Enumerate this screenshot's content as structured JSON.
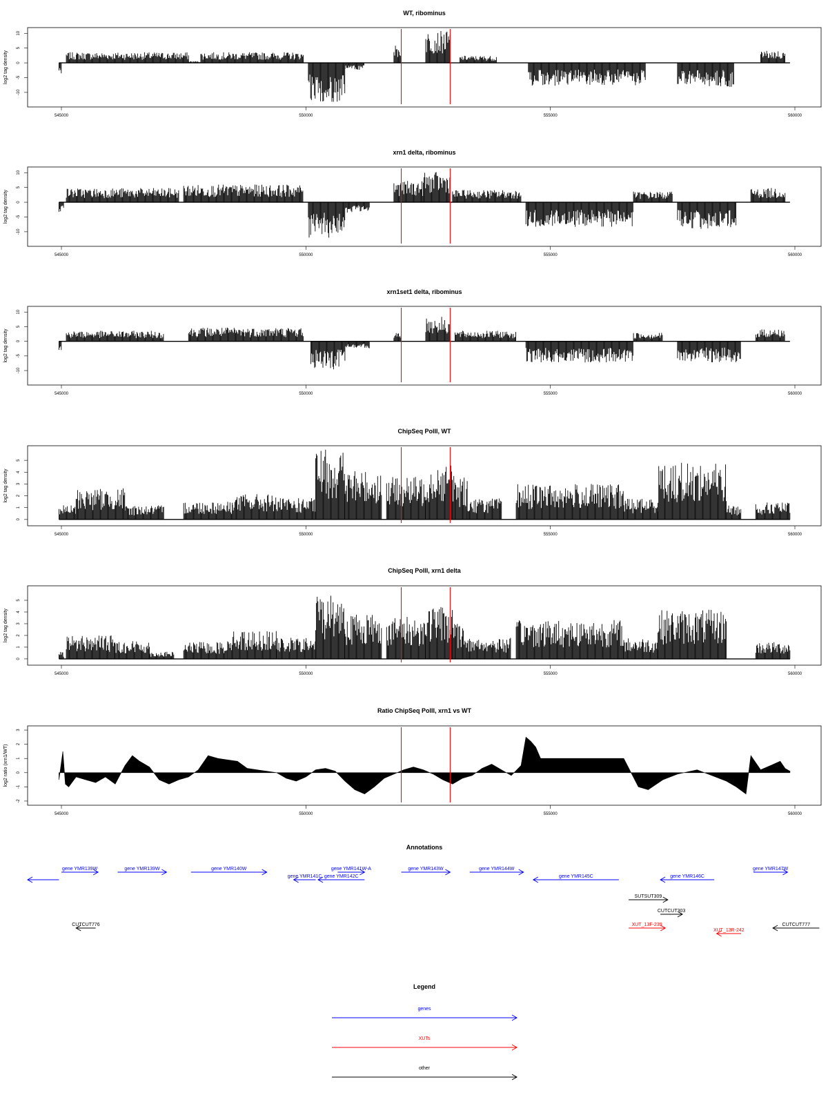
{
  "chart_data": [
    {
      "type": "bar",
      "title": "WT, ribominus",
      "ylabel": "log2 tag density",
      "xlim": [
        545000,
        560000
      ],
      "ylim": [
        -14,
        11
      ],
      "yticks": [
        -10,
        -5,
        0,
        5,
        10
      ],
      "xticks": [
        545000,
        550000,
        555000,
        560000
      ],
      "markers": [
        551950,
        552950
      ],
      "series": [
        {
          "segments": [
            {
              "from": 544950,
              "to": 545000,
              "v": -3
            },
            {
              "from": 545100,
              "to": 547600,
              "v": 3
            },
            {
              "from": 547600,
              "to": 547850,
              "v": 0.5
            },
            {
              "from": 547850,
              "to": 549950,
              "v": 3
            },
            {
              "from": 550050,
              "to": 550800,
              "v": -11
            },
            {
              "from": 550800,
              "to": 551200,
              "v": -2
            },
            {
              "from": 551800,
              "to": 551950,
              "v": 5
            },
            {
              "from": 552450,
              "to": 552950,
              "v": 9
            },
            {
              "from": 553150,
              "to": 553900,
              "v": 2
            },
            {
              "from": 554550,
              "to": 556950,
              "v": -6.5
            },
            {
              "from": 557600,
              "to": 558750,
              "v": -7
            },
            {
              "from": 559300,
              "to": 559800,
              "v": 3.5
            }
          ]
        }
      ]
    },
    {
      "type": "bar",
      "title": "xrn1 delta, ribominus",
      "ylabel": "log2 tag density",
      "xlim": [
        545000,
        560000
      ],
      "ylim": [
        -14,
        11
      ],
      "yticks": [
        -10,
        -5,
        0,
        5,
        10
      ],
      "xticks": [
        545000,
        550000,
        555000,
        560000
      ],
      "markers": [
        551950,
        552950
      ],
      "series": [
        {
          "segments": [
            {
              "from": 544950,
              "to": 545050,
              "v": -3
            },
            {
              "from": 545100,
              "to": 547400,
              "v": 4
            },
            {
              "from": 547500,
              "to": 549950,
              "v": 5
            },
            {
              "from": 550050,
              "to": 550800,
              "v": -10
            },
            {
              "from": 550800,
              "to": 551300,
              "v": -3
            },
            {
              "from": 551800,
              "to": 552400,
              "v": 6
            },
            {
              "from": 552400,
              "to": 552950,
              "v": 8.5
            },
            {
              "from": 553000,
              "to": 554400,
              "v": 3.5
            },
            {
              "from": 554500,
              "to": 556700,
              "v": -7
            },
            {
              "from": 556700,
              "to": 557500,
              "v": 3
            },
            {
              "from": 557600,
              "to": 558800,
              "v": -7.5
            },
            {
              "from": 559100,
              "to": 559800,
              "v": 4
            }
          ]
        }
      ]
    },
    {
      "type": "bar",
      "title": "xrn1set1 delta, ribominus",
      "ylabel": "log2 tag density",
      "xlim": [
        545000,
        560000
      ],
      "ylim": [
        -14,
        11
      ],
      "yticks": [
        -10,
        -5,
        0,
        5,
        10
      ],
      "xticks": [
        545000,
        550000,
        555000,
        560000
      ],
      "markers": [
        551950,
        552950
      ],
      "series": [
        {
          "segments": [
            {
              "from": 544950,
              "to": 545000,
              "v": -3
            },
            {
              "from": 545100,
              "to": 547100,
              "v": 3
            },
            {
              "from": 547600,
              "to": 549950,
              "v": 4
            },
            {
              "from": 550100,
              "to": 550800,
              "v": -8
            },
            {
              "from": 550800,
              "to": 551300,
              "v": -2
            },
            {
              "from": 551800,
              "to": 551950,
              "v": 3
            },
            {
              "from": 552450,
              "to": 552950,
              "v": 7
            },
            {
              "from": 553050,
              "to": 554300,
              "v": 3
            },
            {
              "from": 554500,
              "to": 556700,
              "v": -6
            },
            {
              "from": 556700,
              "to": 557300,
              "v": 2.5
            },
            {
              "from": 557600,
              "to": 558900,
              "v": -6
            },
            {
              "from": 559200,
              "to": 559800,
              "v": 3.5
            }
          ]
        }
      ]
    },
    {
      "type": "bar",
      "title": "ChipSeq PolII, WT",
      "ylabel": "log2 tag density",
      "xlim": [
        545000,
        560000
      ],
      "ylim": [
        -0.3,
        6
      ],
      "yticks": [
        0,
        1,
        2,
        3,
        4,
        5
      ],
      "xticks": [
        545000,
        550000,
        555000,
        560000
      ],
      "markers": [
        551950,
        552950
      ],
      "series": [
        {
          "segments": [
            {
              "from": 544950,
              "to": 545300,
              "v": 1
            },
            {
              "from": 545300,
              "to": 546300,
              "v": 2.2
            },
            {
              "from": 546300,
              "to": 547100,
              "v": 1
            },
            {
              "from": 547500,
              "to": 548500,
              "v": 1.3
            },
            {
              "from": 548500,
              "to": 549400,
              "v": 1.8
            },
            {
              "from": 549400,
              "to": 550200,
              "v": 1.5
            },
            {
              "from": 550200,
              "to": 550800,
              "v": 5
            },
            {
              "from": 550800,
              "to": 551550,
              "v": 3.5
            },
            {
              "from": 551650,
              "to": 552450,
              "v": 3
            },
            {
              "from": 552450,
              "to": 553050,
              "v": 4
            },
            {
              "from": 553050,
              "to": 553300,
              "v": 3
            },
            {
              "from": 553300,
              "to": 554000,
              "v": 1.5
            },
            {
              "from": 554300,
              "to": 556500,
              "v": 2.5
            },
            {
              "from": 556500,
              "to": 557200,
              "v": 1.5
            },
            {
              "from": 557200,
              "to": 558600,
              "v": 4
            },
            {
              "from": 558600,
              "to": 558900,
              "v": 1
            },
            {
              "from": 559200,
              "to": 559900,
              "v": 1.2
            }
          ]
        }
      ]
    },
    {
      "type": "bar",
      "title": "ChipSeq PolII, xrn1 delta",
      "ylabel": "log2 tag density",
      "xlim": [
        545000,
        560000
      ],
      "ylim": [
        -0.3,
        6
      ],
      "yticks": [
        0,
        1,
        2,
        3,
        4,
        5
      ],
      "xticks": [
        545000,
        550000,
        555000,
        560000
      ],
      "markers": [
        551950,
        552950
      ],
      "series": [
        {
          "segments": [
            {
              "from": 544950,
              "to": 545050,
              "v": 0.5
            },
            {
              "from": 545100,
              "to": 546100,
              "v": 1.7
            },
            {
              "from": 546100,
              "to": 546800,
              "v": 1.3
            },
            {
              "from": 546800,
              "to": 547300,
              "v": 0.5
            },
            {
              "from": 547500,
              "to": 548400,
              "v": 1.2
            },
            {
              "from": 548400,
              "to": 549400,
              "v": 2
            },
            {
              "from": 549400,
              "to": 550200,
              "v": 1.5
            },
            {
              "from": 550200,
              "to": 550800,
              "v": 4.7
            },
            {
              "from": 550800,
              "to": 551550,
              "v": 3.3
            },
            {
              "from": 551650,
              "to": 552450,
              "v": 3
            },
            {
              "from": 552450,
              "to": 553050,
              "v": 3.8
            },
            {
              "from": 553050,
              "to": 553300,
              "v": 2.5
            },
            {
              "from": 553300,
              "to": 554200,
              "v": 1.5
            },
            {
              "from": 554300,
              "to": 556500,
              "v": 2.8
            },
            {
              "from": 556500,
              "to": 557200,
              "v": 1.5
            },
            {
              "from": 557200,
              "to": 558600,
              "v": 3.5
            },
            {
              "from": 559200,
              "to": 559900,
              "v": 1.2
            }
          ]
        }
      ]
    },
    {
      "type": "area",
      "title": "Ratio ChipSeq PolII, xrn1 vs WT",
      "ylabel": "log2 ratio (xrn1/WT)",
      "xlim": [
        545000,
        560000
      ],
      "ylim": [
        -2.1,
        3.1
      ],
      "yticks": [
        -2,
        -1,
        0,
        1,
        2,
        3
      ],
      "xticks": [
        545000,
        550000,
        555000,
        560000
      ],
      "markers": [
        551950,
        552950
      ],
      "series": [
        {
          "x": [
            544950,
            545030,
            545080,
            545150,
            545300,
            545500,
            545700,
            545900,
            546100,
            546300,
            546450,
            546600,
            546800,
            547000,
            547200,
            547400,
            547600,
            547800,
            548000,
            548200,
            548400,
            548600,
            548800,
            549000,
            549200,
            549400,
            549600,
            549800,
            550000,
            550200,
            550400,
            550600,
            550800,
            551000,
            551200,
            551400,
            551600,
            551800,
            552000,
            552200,
            552400,
            552600,
            552800,
            553000,
            553200,
            553400,
            553600,
            553800,
            554000,
            554200,
            554400,
            554500,
            554600,
            554700,
            554800,
            555000,
            555500,
            556000,
            556500,
            556800,
            557000,
            557300,
            557600,
            558000,
            558300,
            558600,
            558800,
            559000,
            559100,
            559300,
            559500,
            559700,
            559800,
            559900
          ],
          "y": [
            -0.5,
            1.5,
            -0.8,
            -1,
            -0.3,
            -0.5,
            -0.7,
            -0.3,
            -0.8,
            0.5,
            1.2,
            0.8,
            0.4,
            -0.5,
            -0.8,
            -0.5,
            -0.3,
            0.2,
            1.2,
            1.0,
            0.9,
            0.8,
            0.3,
            0.2,
            0.1,
            0,
            -0.4,
            -0.6,
            -0.3,
            0.2,
            0.3,
            0.1,
            -0.6,
            -1.2,
            -1.5,
            -1.0,
            -0.4,
            -0.1,
            0.2,
            0.4,
            0.2,
            -0.1,
            -0.5,
            -0.8,
            -0.4,
            -0.2,
            0.3,
            0.6,
            0.2,
            -0.2,
            0.5,
            2.5,
            2.2,
            1.8,
            1.0,
            1.0,
            1.0,
            1.0,
            1.0,
            -1.0,
            -1.2,
            -0.5,
            -0.1,
            0.2,
            -0.2,
            -0.6,
            -1.0,
            -1.5,
            1.2,
            0.2,
            0.5,
            0.8,
            0.3,
            0.1
          ]
        }
      ]
    }
  ],
  "annotations": {
    "title": "Annotations",
    "items": [
      {
        "label": "gene YMR139W",
        "from": 545000,
        "to": 545750,
        "strand": "+",
        "row": 0,
        "kind": "gene"
      },
      {
        "label": "gene YMR139W",
        "from": 546150,
        "to": 547150,
        "strand": "+",
        "row": 0,
        "kind": "gene"
      },
      {
        "label": "gene YMR140W",
        "from": 547650,
        "to": 549200,
        "strand": "+",
        "row": 0,
        "kind": "gene"
      },
      {
        "label": "gene YMR141C",
        "from": 549750,
        "to": 550200,
        "strand": "-",
        "row": 1,
        "kind": "gene"
      },
      {
        "label": "gene YMR142C",
        "from": 550250,
        "to": 551200,
        "strand": "-",
        "row": 1,
        "kind": "gene"
      },
      {
        "label": "gene YMR141W-A",
        "from": 550650,
        "to": 551200,
        "strand": "+",
        "row": 0,
        "kind": "gene"
      },
      {
        "label": "gene YMR143W",
        "from": 551950,
        "to": 552950,
        "strand": "+",
        "row": 0,
        "kind": "gene"
      },
      {
        "label": "gene YMR144W",
        "from": 553350,
        "to": 554450,
        "strand": "+",
        "row": 0,
        "kind": "gene"
      },
      {
        "label": "gene YMR145C",
        "from": 554650,
        "to": 556400,
        "strand": "-",
        "row": 1,
        "kind": "gene"
      },
      {
        "label": "gene YMR146C",
        "from": 557250,
        "to": 558350,
        "strand": "-",
        "row": 1,
        "kind": "gene"
      },
      {
        "label": "gene YMR147W",
        "from": 559150,
        "to": 559850,
        "strand": "+",
        "row": 0,
        "kind": "gene"
      },
      {
        "label": "",
        "from": 544000,
        "to": 544950,
        "strand": "-",
        "row": 1,
        "kind": "gene"
      },
      {
        "label": "SUTSUT309",
        "from": 556600,
        "to": 557400,
        "strand": "+",
        "row": 2,
        "kind": "other"
      },
      {
        "label": "CUTCUT303",
        "from": 557250,
        "to": 557700,
        "strand": "+",
        "row": 3,
        "kind": "other"
      },
      {
        "label": "XUT_13F-239",
        "from": 556600,
        "to": 557350,
        "strand": "+",
        "row": 4,
        "kind": "xut"
      },
      {
        "label": "XUT_13R-242",
        "from": 558400,
        "to": 558900,
        "strand": "-",
        "row": 5,
        "kind": "xut"
      },
      {
        "label": "CUTCUT776",
        "from": 545300,
        "to": 545700,
        "strand": "-",
        "row": 4,
        "kind": "other"
      },
      {
        "label": "CUTCUT777",
        "from": 559550,
        "to": 560500,
        "strand": "-",
        "row": 4,
        "kind": "other"
      }
    ]
  },
  "legend": {
    "title": "Legend",
    "entries": [
      {
        "label": "genes",
        "color": "#0000ff"
      },
      {
        "label": "XUTs",
        "color": "#ff0000"
      },
      {
        "label": "other",
        "color": "#000000"
      }
    ]
  },
  "colors": {
    "marker": "#ff0000",
    "bars": "#000000",
    "gene": "#0000ff",
    "xut": "#ff0000",
    "other": "#000000"
  },
  "tick_labels": {
    "545000": "545000",
    "550000": "550000",
    "555000": "555000",
    "560000": "560000"
  }
}
